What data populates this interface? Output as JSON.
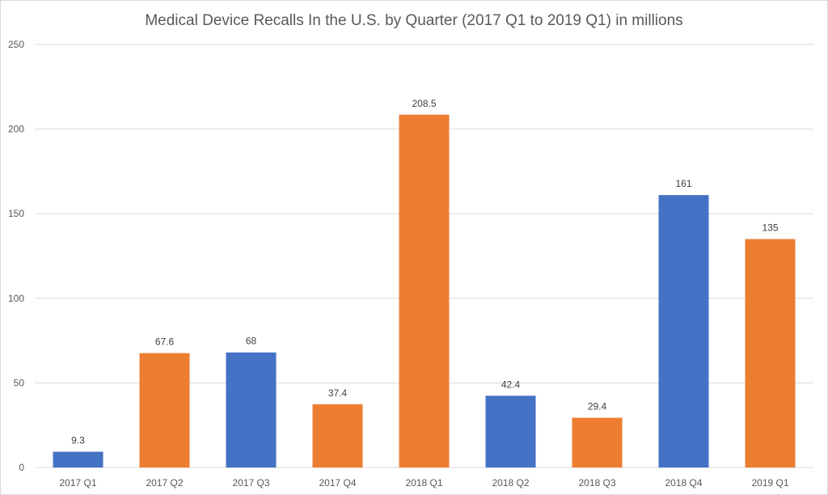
{
  "chart_data": {
    "type": "bar",
    "title": "Medical Device Recalls In the U.S. by Quarter (2017 Q1 to 2019 Q1) in millions",
    "xlabel": "",
    "ylabel": "",
    "categories": [
      "2017 Q1",
      "2017 Q2",
      "2017 Q3",
      "2017 Q4",
      "2018 Q1",
      "2018 Q2",
      "2018 Q3",
      "2018 Q4",
      "2019 Q1"
    ],
    "values": [
      9.3,
      67.6,
      68,
      37.4,
      208.5,
      42.4,
      29.4,
      161,
      135
    ],
    "data_labels": [
      "9.3",
      "67.6",
      "68",
      "37.4",
      "208.5",
      "42.4",
      "29.4",
      "161",
      "135"
    ],
    "bar_colors": [
      "#4472C4",
      "#ED7D31",
      "#4472C4",
      "#ED7D31",
      "#ED7D31",
      "#4472C4",
      "#ED7D31",
      "#4472C4",
      "#ED7D31"
    ],
    "ylim": [
      0,
      250
    ],
    "yticks": [
      0,
      50,
      100,
      150,
      200,
      250
    ],
    "grid": true,
    "legend": "none"
  }
}
